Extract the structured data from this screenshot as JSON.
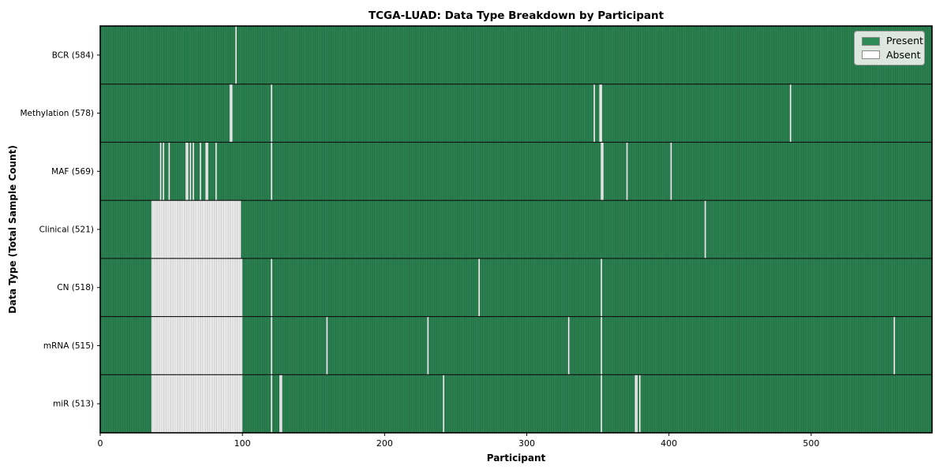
{
  "chart_data": {
    "type": "heatmap",
    "title": "TCGA-LUAD: Data Type Breakdown by Participant",
    "xlabel": "Participant",
    "ylabel": "Data Type (Total Sample Count)",
    "x_range": [
      0,
      585
    ],
    "x_ticks": [
      0,
      100,
      200,
      300,
      400,
      500
    ],
    "grid": false,
    "colors": {
      "present": "#2e8b57",
      "absent": "#ffffff",
      "bar_edge": "rgba(0,0,0,0.38)",
      "row_separator": "#111111",
      "spine": "#000000"
    },
    "legend": {
      "position": "upper right",
      "items": [
        {
          "label": "Present",
          "color": "#2e8b57"
        },
        {
          "label": "Absent",
          "color": "#ffffff"
        }
      ]
    },
    "rows": [
      {
        "label": "BCR (584)",
        "name": "BCR",
        "count": 584,
        "absent_ranges": [
          [
            95,
            96
          ]
        ]
      },
      {
        "label": "Methylation (578)",
        "name": "Methylation",
        "count": 578,
        "absent_ranges": [
          [
            91,
            93
          ],
          [
            120,
            121
          ],
          [
            347,
            348
          ],
          [
            351,
            353
          ],
          [
            485,
            486
          ]
        ]
      },
      {
        "label": "MAF (569)",
        "name": "MAF",
        "count": 569,
        "absent_ranges": [
          [
            42,
            43
          ],
          [
            44,
            45
          ],
          [
            48,
            49
          ],
          [
            60,
            62
          ],
          [
            63,
            64
          ],
          [
            65,
            66
          ],
          [
            70,
            71
          ],
          [
            74,
            76
          ],
          [
            81,
            82
          ],
          [
            120,
            121
          ],
          [
            352,
            354
          ],
          [
            370,
            371
          ],
          [
            401,
            402
          ]
        ]
      },
      {
        "label": "Clinical (521)",
        "name": "Clinical",
        "count": 521,
        "absent_ranges": [
          [
            36,
            99
          ],
          [
            425,
            426
          ]
        ]
      },
      {
        "label": "CN (518)",
        "name": "CN",
        "count": 518,
        "absent_ranges": [
          [
            36,
            100
          ],
          [
            120,
            121
          ],
          [
            266,
            267
          ],
          [
            352,
            353
          ]
        ]
      },
      {
        "label": "mRNA (515)",
        "name": "mRNA",
        "count": 515,
        "absent_ranges": [
          [
            36,
            100
          ],
          [
            120,
            121
          ],
          [
            159,
            160
          ],
          [
            230,
            231
          ],
          [
            329,
            330
          ],
          [
            352,
            353
          ],
          [
            558,
            559
          ]
        ]
      },
      {
        "label": "miR (513)",
        "name": "miR",
        "count": 513,
        "absent_ranges": [
          [
            36,
            100
          ],
          [
            120,
            121
          ],
          [
            126,
            128
          ],
          [
            241,
            242
          ],
          [
            352,
            353
          ],
          [
            376,
            378
          ],
          [
            379,
            380
          ]
        ]
      }
    ]
  }
}
